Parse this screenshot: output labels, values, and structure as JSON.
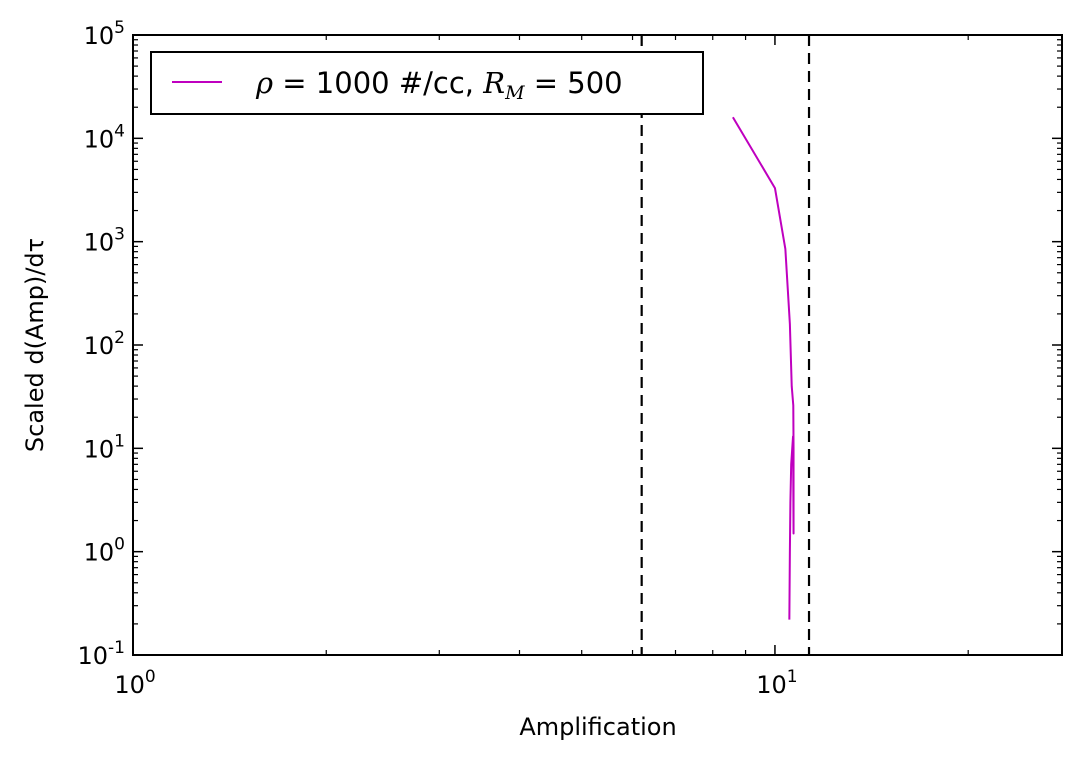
{
  "chart_data": {
    "type": "line",
    "xlabel": "Amplification",
    "ylabel": "Scaled d(Amp)/dτ",
    "xscale": "log",
    "yscale": "log",
    "xlim": [
      1,
      28
    ],
    "ylim": [
      0.1,
      100000
    ],
    "grid": false,
    "legend_placement": "top-left",
    "x_ticks": [
      {
        "value": 1,
        "base": "10",
        "exp": "0"
      },
      {
        "value": 10,
        "base": "10",
        "exp": "1"
      }
    ],
    "y_ticks": [
      {
        "value": 0.1,
        "base": "10",
        "exp": "-1"
      },
      {
        "value": 1,
        "base": "10",
        "exp": "0"
      },
      {
        "value": 10,
        "base": "10",
        "exp": "1"
      },
      {
        "value": 100,
        "base": "10",
        "exp": "2"
      },
      {
        "value": 1000,
        "base": "10",
        "exp": "3"
      },
      {
        "value": 10000,
        "base": "10",
        "exp": "4"
      },
      {
        "value": 100000,
        "base": "10",
        "exp": "5"
      }
    ],
    "vlines": [
      {
        "x": 6.2,
        "style": "dashed",
        "color": "#000000"
      },
      {
        "x": 11.3,
        "style": "dashed",
        "color": "#000000"
      }
    ],
    "series": [
      {
        "legend_prefix": "ρ",
        "legend_middle": " = 1000 #/cc, ",
        "legend_math": "R",
        "legend_math_sub": "M",
        "legend_suffix": " =  500",
        "color": "#bf00bf",
        "points": [
          [
            8.6,
            16000
          ],
          [
            10.0,
            3300
          ],
          [
            10.38,
            850
          ],
          [
            10.55,
            160
          ],
          [
            10.62,
            40
          ],
          [
            10.68,
            26
          ],
          [
            10.69,
            10
          ],
          [
            10.69,
            1.5
          ],
          [
            10.67,
            13
          ],
          [
            10.6,
            7
          ],
          [
            10.57,
            3
          ],
          [
            10.55,
            1
          ],
          [
            10.53,
            0.22
          ]
        ]
      }
    ]
  }
}
